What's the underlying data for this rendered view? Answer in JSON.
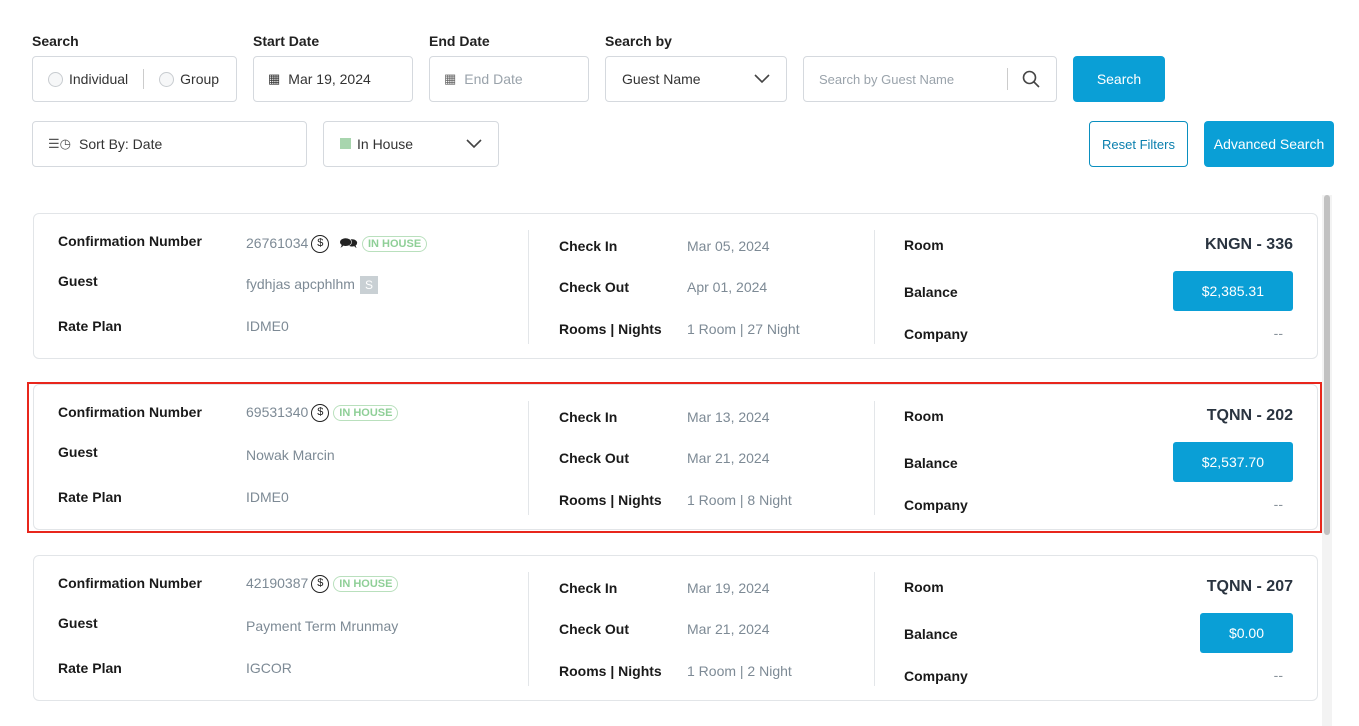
{
  "filters": {
    "search_label": "Search",
    "individual": "Individual",
    "group": "Group",
    "start_date_label": "Start Date",
    "start_date": "Mar 19, 2024",
    "end_date_label": "End Date",
    "end_date_placeholder": "End Date",
    "search_by_label": "Search by",
    "search_by": "Guest Name",
    "search_placeholder": "Search by Guest Name",
    "search_button": "Search",
    "sort": "Sort By: Date",
    "status": "In House",
    "status_color": "#a8d5ae",
    "reset": "Reset Filters",
    "advanced": "Advanced Search"
  },
  "labels": {
    "conf": "Confirmation Number",
    "guest": "Guest",
    "rate": "Rate Plan",
    "checkin": "Check In",
    "checkout": "Check Out",
    "rooms": "Rooms | Nights",
    "room": "Room",
    "balance": "Balance",
    "company": "Company"
  },
  "reservations": [
    {
      "conf": "26761034",
      "badge": "IN HOUSE",
      "guest": "fydhjas apcphlhm",
      "rate": "IDME0",
      "checkin": "Mar 05, 2024",
      "checkout": "Apr 01, 2024",
      "rooms": "1 Room | 27 Night",
      "room": "KNGN - 336",
      "balance": "$2,385.31",
      "company": "--"
    },
    {
      "conf": "69531340",
      "badge": "IN HOUSE",
      "guest": "Nowak Marcin",
      "rate": "IDME0",
      "checkin": "Mar 13, 2024",
      "checkout": "Mar 21, 2024",
      "rooms": "1 Room | 8 Night",
      "room": "TQNN - 202",
      "balance": "$2,537.70",
      "company": "--"
    },
    {
      "conf": "42190387",
      "badge": "IN HOUSE",
      "guest": "Payment Term Mrunmay",
      "rate": "IGCOR",
      "checkin": "Mar 19, 2024",
      "checkout": "Mar 21, 2024",
      "rooms": "1 Room | 2 Night",
      "room": "TQNN - 207",
      "balance": "$0.00",
      "company": "--"
    }
  ],
  "highlight_color": "#e8261c"
}
